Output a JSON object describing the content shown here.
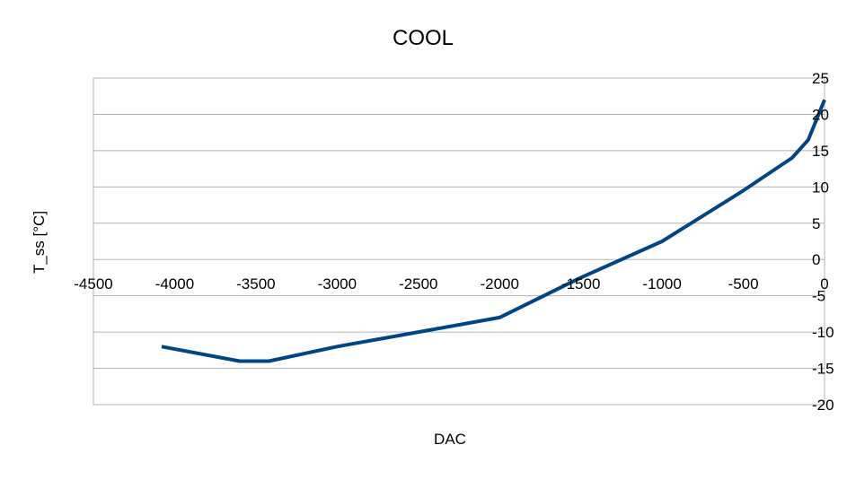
{
  "chart_data": {
    "type": "line",
    "title": "COOL",
    "xlabel": "DAC",
    "ylabel": "T_ss [°C]",
    "xlim": [
      -4500,
      0
    ],
    "ylim": [
      -20,
      25
    ],
    "x_ticks": [
      -4500,
      -4000,
      -3500,
      -3000,
      -2500,
      -2000,
      -1500,
      -1000,
      -500,
      0
    ],
    "y_ticks": [
      25,
      20,
      15,
      10,
      5,
      0,
      -5,
      -10,
      -15,
      -20
    ],
    "grid": true,
    "legend": "none",
    "series": [
      {
        "color": "#004586",
        "x": [
          -4080,
          -3600,
          -3420,
          -3000,
          -2500,
          -2000,
          -1500,
          -1000,
          -500,
          -200,
          -100,
          0
        ],
        "y": [
          -12,
          -14,
          -14,
          -12,
          -10,
          -8,
          -2.5,
          2.5,
          9.5,
          14,
          16.5,
          22
        ]
      }
    ]
  }
}
